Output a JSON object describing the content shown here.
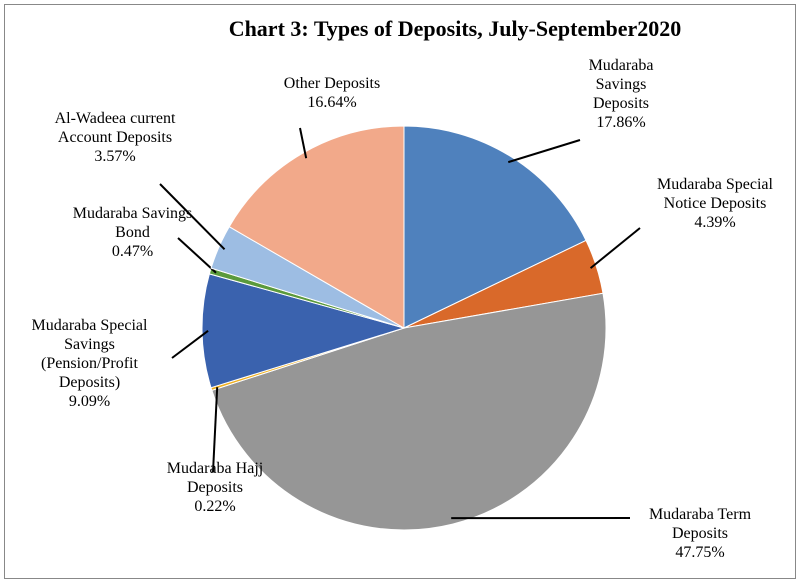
{
  "chart_data": {
    "type": "pie",
    "title": "Chart 3: Types of Deposits, July-September2020",
    "categories": [
      "Mudaraba Savings Deposits",
      "Mudaraba Special Notice Deposits",
      "Mudaraba Term Deposits",
      "Mudaraba Hajj Deposits",
      "Mudaraba Special Savings (Pension/Profit Deposits)",
      "Mudaraba Savings Bond",
      "Al-Wadeea current Account Deposits",
      "Other Deposits"
    ],
    "values": [
      17.86,
      4.39,
      47.75,
      0.22,
      9.09,
      0.47,
      3.57,
      16.64
    ],
    "value_labels": [
      "17.86%",
      "4.39%",
      "47.75%",
      "0.22%",
      "9.09%",
      "0.47%",
      "3.57%",
      "16.64%"
    ],
    "colors": [
      "#4f81bd",
      "#d9692a",
      "#969696",
      "#f0b020",
      "#3a62ae",
      "#5b9a3c",
      "#9dbde3",
      "#f2a98a"
    ]
  }
}
